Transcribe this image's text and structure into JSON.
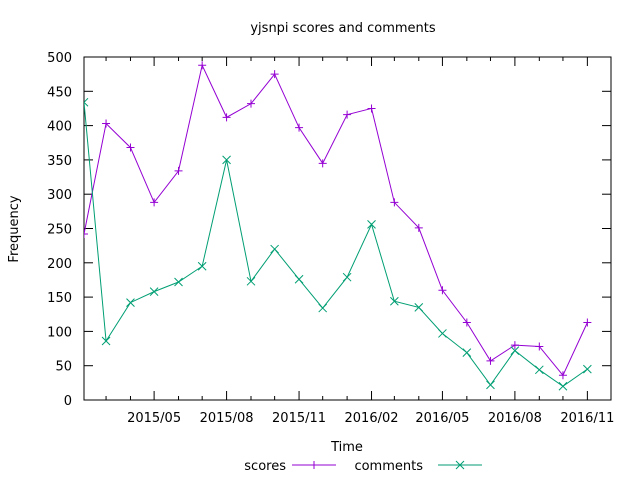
{
  "chart_data": {
    "type": "line",
    "title": "yjsnpi scores and comments",
    "xlabel": "Time",
    "ylabel": "Frequency",
    "ylim": [
      0,
      500
    ],
    "yticks": [
      0,
      50,
      100,
      150,
      200,
      250,
      300,
      350,
      400,
      450,
      500
    ],
    "xlim": [
      "2015-02-01",
      "2016-12-01"
    ],
    "xticks": [
      "2015/05",
      "2015/08",
      "2015/11",
      "2016/02",
      "2016/05",
      "2016/08",
      "2016/11"
    ],
    "legend_position": "bottom",
    "series": [
      {
        "name": "scores",
        "color": "#9400d3",
        "marker": "plus",
        "values": [
          {
            "x": "2015-02-01",
            "y": 242
          },
          {
            "x": "2015-03-01",
            "y": 403
          },
          {
            "x": "2015-04-01",
            "y": 368
          },
          {
            "x": "2015-05-01",
            "y": 288
          },
          {
            "x": "2015-06-01",
            "y": 334
          },
          {
            "x": "2015-07-01",
            "y": 488
          },
          {
            "x": "2015-08-01",
            "y": 412
          },
          {
            "x": "2015-09-01",
            "y": 432
          },
          {
            "x": "2015-10-01",
            "y": 475
          },
          {
            "x": "2015-11-01",
            "y": 397
          },
          {
            "x": "2015-12-01",
            "y": 345
          },
          {
            "x": "2016-01-01",
            "y": 416
          },
          {
            "x": "2016-02-01",
            "y": 425
          },
          {
            "x": "2016-03-01",
            "y": 288
          },
          {
            "x": "2016-04-01",
            "y": 251
          },
          {
            "x": "2016-05-01",
            "y": 160
          },
          {
            "x": "2016-06-01",
            "y": 113
          },
          {
            "x": "2016-07-01",
            "y": 57
          },
          {
            "x": "2016-08-01",
            "y": 80
          },
          {
            "x": "2016-09-01",
            "y": 78
          },
          {
            "x": "2016-10-01",
            "y": 36
          },
          {
            "x": "2016-11-01",
            "y": 113
          }
        ]
      },
      {
        "name": "comments",
        "color": "#009e73",
        "marker": "cross",
        "values": [
          {
            "x": "2015-02-01",
            "y": 434
          },
          {
            "x": "2015-03-01",
            "y": 86
          },
          {
            "x": "2015-04-01",
            "y": 142
          },
          {
            "x": "2015-05-01",
            "y": 158
          },
          {
            "x": "2015-06-01",
            "y": 172
          },
          {
            "x": "2015-07-01",
            "y": 195
          },
          {
            "x": "2015-08-01",
            "y": 350
          },
          {
            "x": "2015-09-01",
            "y": 173
          },
          {
            "x": "2015-10-01",
            "y": 220
          },
          {
            "x": "2015-11-01",
            "y": 176
          },
          {
            "x": "2015-12-01",
            "y": 134
          },
          {
            "x": "2016-01-01",
            "y": 179
          },
          {
            "x": "2016-02-01",
            "y": 256
          },
          {
            "x": "2016-03-01",
            "y": 144
          },
          {
            "x": "2016-04-01",
            "y": 135
          },
          {
            "x": "2016-05-01",
            "y": 97
          },
          {
            "x": "2016-06-01",
            "y": 69
          },
          {
            "x": "2016-07-01",
            "y": 22
          },
          {
            "x": "2016-08-01",
            "y": 72
          },
          {
            "x": "2016-09-01",
            "y": 44
          },
          {
            "x": "2016-10-01",
            "y": 20
          },
          {
            "x": "2016-11-01",
            "y": 45
          }
        ]
      }
    ]
  }
}
